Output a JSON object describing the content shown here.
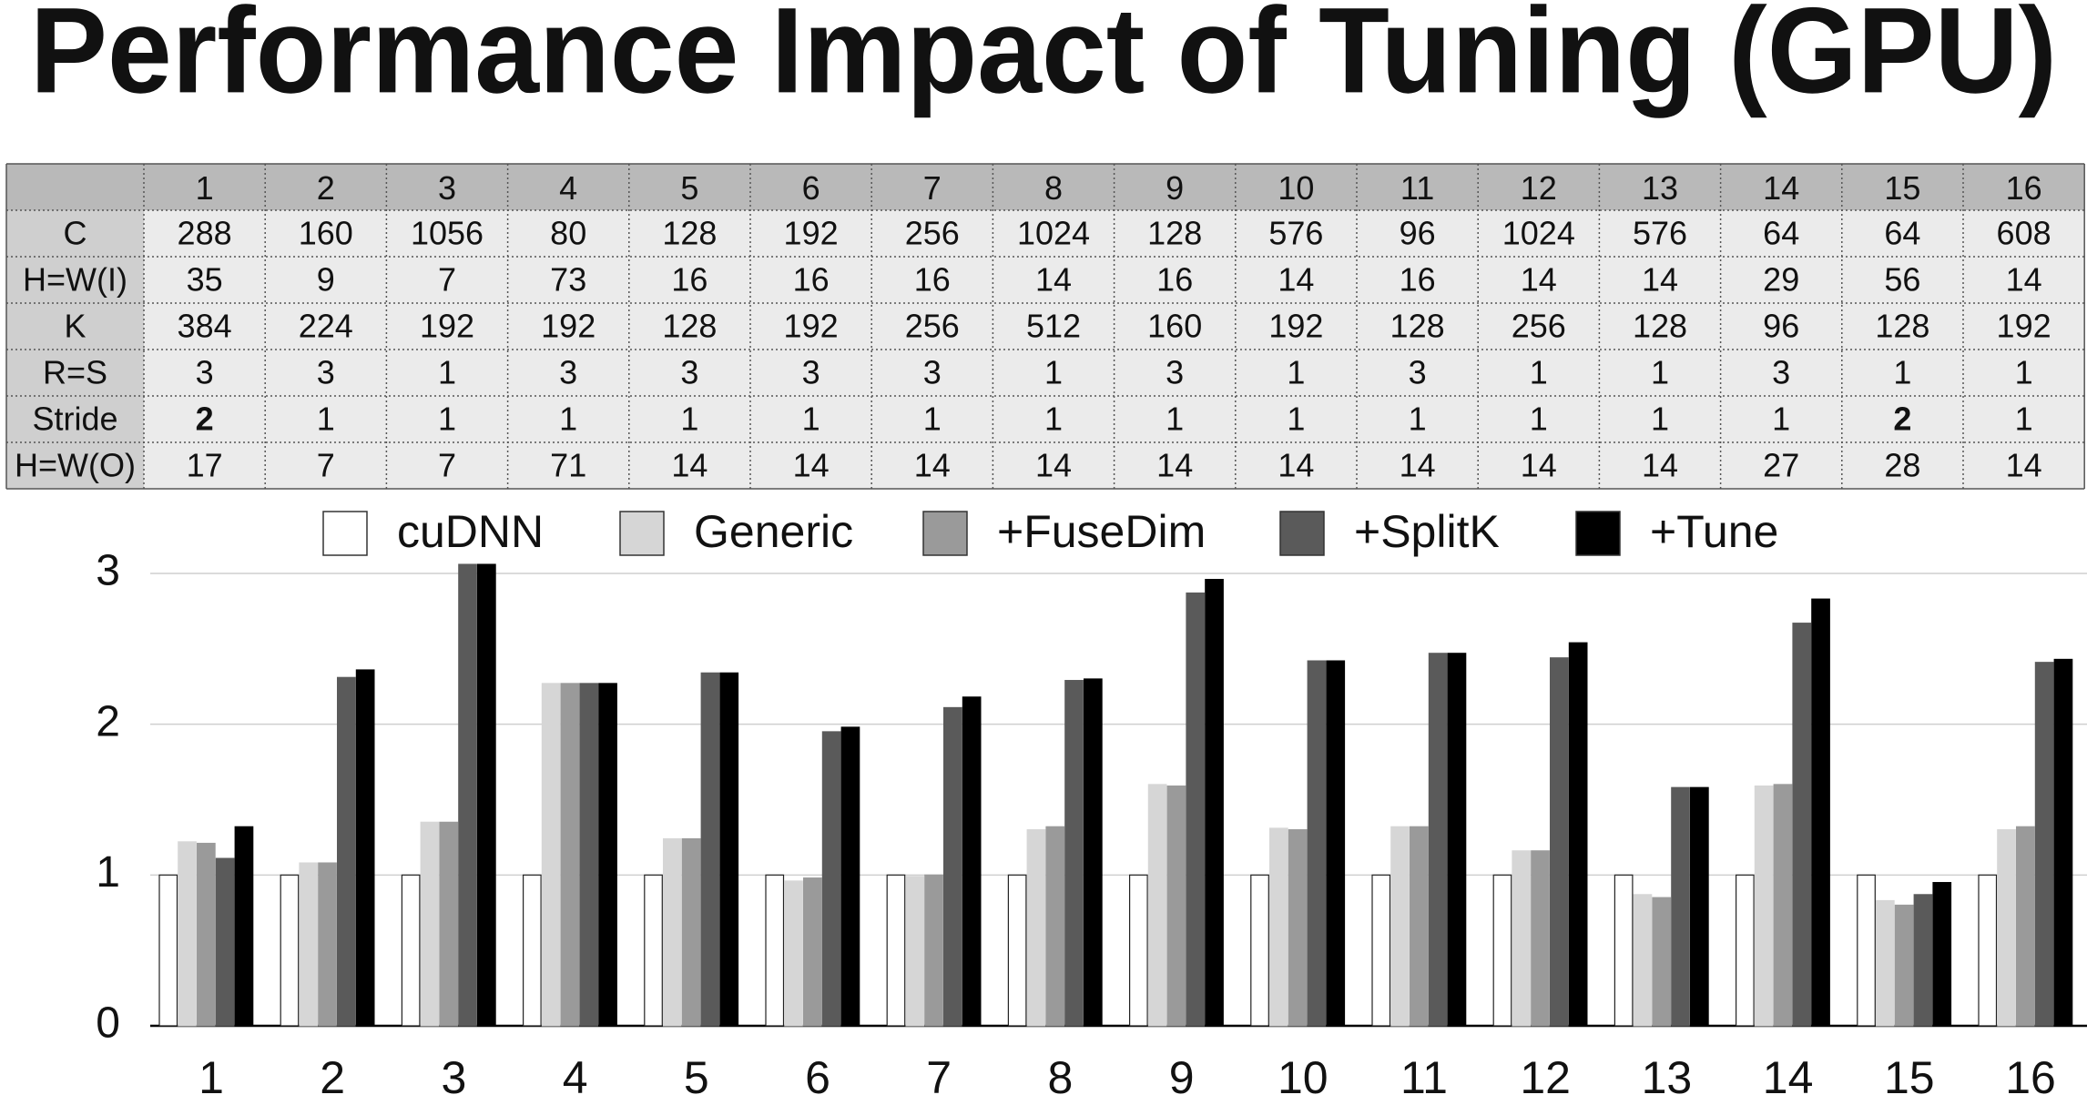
{
  "title": "Performance Impact of Tuning (GPU)",
  "table": {
    "columns": [
      "1",
      "2",
      "3",
      "4",
      "5",
      "6",
      "7",
      "8",
      "9",
      "10",
      "11",
      "12",
      "13",
      "14",
      "15",
      "16"
    ],
    "rows": [
      {
        "label": "C",
        "cells": [
          "288",
          "160",
          "1056",
          "80",
          "128",
          "192",
          "256",
          "1024",
          "128",
          "576",
          "96",
          "1024",
          "576",
          "64",
          "64",
          "608"
        ]
      },
      {
        "label": "H=W(I)",
        "cells": [
          "35",
          "9",
          "7",
          "73",
          "16",
          "16",
          "16",
          "14",
          "16",
          "14",
          "16",
          "14",
          "14",
          "29",
          "56",
          "14"
        ]
      },
      {
        "label": "K",
        "cells": [
          "384",
          "224",
          "192",
          "192",
          "128",
          "192",
          "256",
          "512",
          "160",
          "192",
          "128",
          "256",
          "128",
          "96",
          "128",
          "192"
        ]
      },
      {
        "label": "R=S",
        "cells": [
          "3",
          "3",
          "1",
          "3",
          "3",
          "3",
          "3",
          "1",
          "3",
          "1",
          "3",
          "1",
          "1",
          "3",
          "1",
          "1"
        ]
      },
      {
        "label": "Stride",
        "cells": [
          {
            "text": "2",
            "bold": true
          },
          "1",
          "1",
          "1",
          "1",
          "1",
          "1",
          "1",
          "1",
          "1",
          "1",
          "1",
          "1",
          "1",
          {
            "text": "2",
            "bold": true
          },
          "1"
        ]
      },
      {
        "label": "H=W(O)",
        "cells": [
          "17",
          "7",
          "7",
          "71",
          "14",
          "14",
          "14",
          "14",
          "14",
          "14",
          "14",
          "14",
          "14",
          "27",
          "28",
          "14"
        ]
      }
    ]
  },
  "chart_data": {
    "type": "bar",
    "categories": [
      "1",
      "2",
      "3",
      "4",
      "5",
      "6",
      "7",
      "8",
      "9",
      "10",
      "11",
      "12",
      "13",
      "14",
      "15",
      "16"
    ],
    "series": [
      {
        "name": "cuDNN",
        "color": "#ffffff",
        "values": [
          1,
          1,
          1,
          1,
          1,
          1,
          1,
          1,
          1,
          1,
          1,
          1,
          1,
          1,
          1,
          1
        ]
      },
      {
        "name": "Generic",
        "color": "#d6d6d6",
        "values": [
          1.22,
          1.08,
          1.35,
          2.27,
          1.24,
          0.96,
          0.99,
          1.3,
          1.6,
          1.31,
          1.32,
          1.16,
          0.87,
          1.59,
          0.83,
          1.3
        ]
      },
      {
        "name": "+FuseDim",
        "color": "#9a9a9a",
        "values": [
          1.21,
          1.08,
          1.35,
          2.27,
          1.24,
          0.98,
          1.0,
          1.32,
          1.59,
          1.3,
          1.32,
          1.16,
          0.85,
          1.6,
          0.8,
          1.32
        ]
      },
      {
        "name": "+SplitK",
        "color": "#5a5a5a",
        "values": [
          1.11,
          2.31,
          3.06,
          2.27,
          2.34,
          1.95,
          2.11,
          2.29,
          2.87,
          2.42,
          2.47,
          2.44,
          1.58,
          2.67,
          0.87,
          2.41
        ]
      },
      {
        "name": "+Tune",
        "color": "#000000",
        "values": [
          1.32,
          2.36,
          3.06,
          2.27,
          2.34,
          1.98,
          2.18,
          2.3,
          2.96,
          2.42,
          2.47,
          2.54,
          1.58,
          2.83,
          0.95,
          2.43
        ]
      }
    ],
    "ylim": [
      0,
      3
    ],
    "yticks": [
      0,
      1,
      2,
      3
    ],
    "grid": true,
    "legend": "top"
  }
}
